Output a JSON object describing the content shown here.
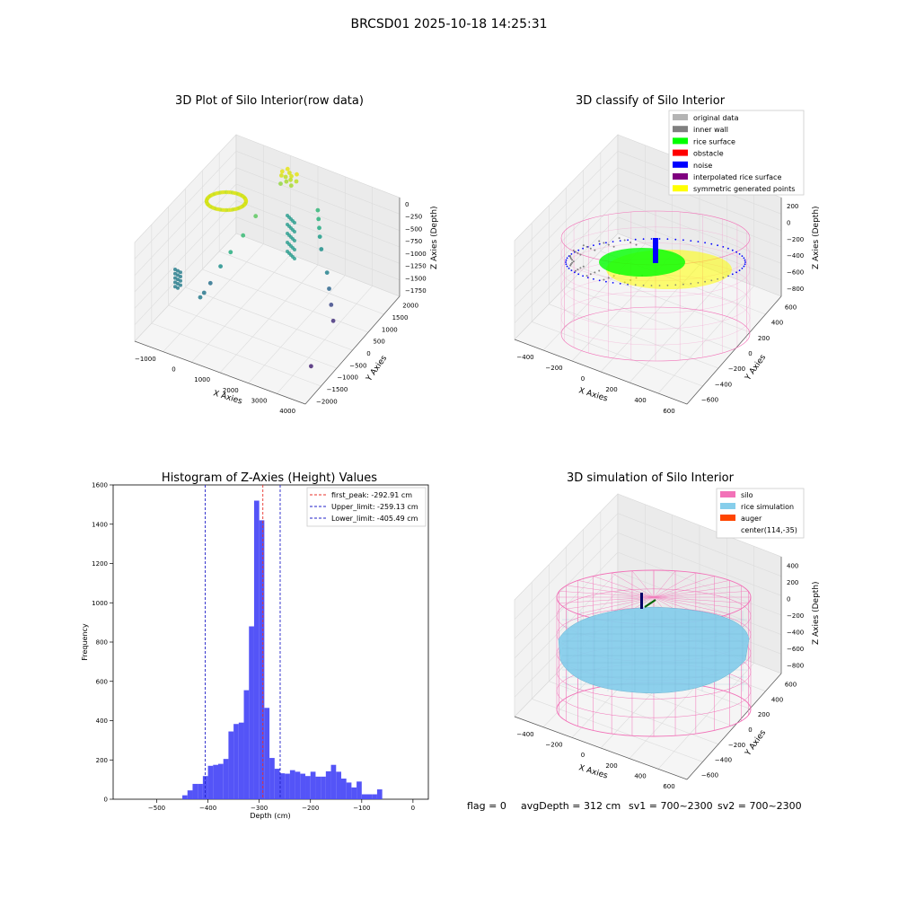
{
  "figure_title": "BRCSD01 2025-10-18 14:25:31",
  "footer": {
    "flag": "flag = 0",
    "avg_depth": "avgDepth = 312 cm",
    "sv1": "sv1 = 700~2300",
    "sv2": "sv2 = 700~2300"
  },
  "colors": {
    "hist_bar": "#4b4bf7",
    "first_peak": "#e8302a",
    "limit": "#2020c8",
    "silo": "#f272b8",
    "rice": "#87ceeb",
    "auger": "#ff4500",
    "original": "#b4b4b4",
    "inner_wall": "#808080",
    "rice_surface": "#00ff00",
    "obstacle": "#ff0000",
    "noise": "#0000ff",
    "interpolated": "#800080",
    "symmetric": "#ffff00"
  },
  "chart_data": [
    {
      "type": "scatter",
      "title": "3D Plot of Silo Interior(row data)",
      "xlabel": "X Axies",
      "ylabel": "Y Axies",
      "zlabel": "Z Axies (Depth)",
      "x_ticks": [
        "−1000",
        "0",
        "1000",
        "2000",
        "3000",
        "4000"
      ],
      "y_ticks": [
        "2000",
        "1500",
        "1000",
        "500",
        "0",
        "−500",
        "−1000",
        "−1500",
        "−2000"
      ],
      "z_ticks": [
        "0",
        "−250",
        "−500",
        "−750",
        "−1000",
        "−1250",
        "−1500",
        "−1750"
      ],
      "xlim": [
        -1300,
        4300
      ],
      "ylim": [
        -2000,
        2300
      ],
      "zlim": [
        -1900,
        0
      ],
      "points": [
        {
          "x": 600,
          "y": 1800,
          "z": -400,
          "c": "#e5e419"
        },
        {
          "x": 650,
          "y": 1700,
          "z": -420,
          "c": "#d8e219"
        },
        {
          "x": 700,
          "y": 1900,
          "z": -380,
          "c": "#e5e419"
        },
        {
          "x": 750,
          "y": 1750,
          "z": -450,
          "c": "#bddf26"
        },
        {
          "x": 800,
          "y": 1850,
          "z": -410,
          "c": "#d8e219"
        },
        {
          "x": 850,
          "y": 1650,
          "z": -470,
          "c": "#a8db34"
        },
        {
          "x": 900,
          "y": 1800,
          "z": -430,
          "c": "#d8e219"
        },
        {
          "x": 950,
          "y": 1700,
          "z": -440,
          "c": "#bddf26"
        },
        {
          "x": 1000,
          "y": 1900,
          "z": -420,
          "c": "#e5e419"
        },
        {
          "x": 1050,
          "y": 1600,
          "z": -480,
          "c": "#a8db34"
        },
        {
          "x": 700,
          "y": 1600,
          "z": -520,
          "c": "#93d741"
        },
        {
          "x": 1100,
          "y": 1750,
          "z": -460,
          "c": "#bddf26"
        },
        {
          "x": 500,
          "y": 800,
          "z": -800,
          "c": "#5ec962"
        },
        {
          "x": 400,
          "y": 400,
          "z": -1000,
          "c": "#3bbb75"
        },
        {
          "x": 300,
          "y": 0,
          "z": -1150,
          "c": "#28ae80"
        },
        {
          "x": 200,
          "y": -300,
          "z": -1300,
          "c": "#21918c"
        },
        {
          "x": 100,
          "y": -600,
          "z": -1500,
          "c": "#2c728e"
        },
        {
          "x": 50,
          "y": -800,
          "z": -1600,
          "c": "#2a788e"
        },
        {
          "x": 0,
          "y": -900,
          "z": -1650,
          "c": "#287c8e"
        },
        {
          "x": 2000,
          "y": 1500,
          "z": -700,
          "c": "#35b779"
        },
        {
          "x": 2100,
          "y": 1400,
          "z": -800,
          "c": "#2db27d"
        },
        {
          "x": 2200,
          "y": 1300,
          "z": -900,
          "c": "#25ab82"
        },
        {
          "x": 2300,
          "y": 1200,
          "z": -1000,
          "c": "#1f9e89"
        },
        {
          "x": 2500,
          "y": 1000,
          "z": -1100,
          "c": "#21918c"
        },
        {
          "x": 3000,
          "y": 600,
          "z": -1250,
          "c": "#26828e"
        },
        {
          "x": 3300,
          "y": 300,
          "z": -1350,
          "c": "#31688e"
        },
        {
          "x": 3600,
          "y": 0,
          "z": -1450,
          "c": "#3e4a89"
        },
        {
          "x": 3900,
          "y": -300,
          "z": -1550,
          "c": "#46327e"
        },
        {
          "x": 4100,
          "y": -1500,
          "z": -1800,
          "c": "#482475"
        }
      ]
    },
    {
      "type": "scatter",
      "title": "3D classify of Silo Interior",
      "xlabel": "X Axies",
      "ylabel": "Y Axies",
      "zlabel": "Z Axies (Depth)",
      "x_ticks": [
        "−400",
        "−200",
        "0",
        "200",
        "400",
        "600"
      ],
      "y_ticks": [
        "600",
        "400",
        "200",
        "0",
        "−200",
        "−400",
        "−600"
      ],
      "z_ticks": [
        "200",
        "0",
        "−200",
        "−400",
        "−600",
        "−800"
      ],
      "legend": [
        "original data",
        "inner wall",
        "rice surface",
        "obstacle",
        "noise",
        "interpolated rice surface",
        "symmetric generated points"
      ],
      "legend_placement": "top-right"
    },
    {
      "type": "bar",
      "title": "Histogram of Z-Axies (Height) Values",
      "xlabel": "Depth (cm)",
      "ylabel": "Frequency",
      "xlim": [
        -585,
        30
      ],
      "ylim": [
        0,
        1600
      ],
      "x_ticks": [
        -500,
        -400,
        -300,
        -200,
        -100,
        0
      ],
      "x_tick_labels": [
        "−500",
        "−400",
        "−300",
        "−200",
        "−100",
        "0"
      ],
      "y_ticks": [
        0,
        200,
        400,
        600,
        800,
        1000,
        1200,
        1400,
        1600
      ],
      "bin_start": -450,
      "bin_width": 10,
      "values": [
        20,
        45,
        78,
        78,
        118,
        170,
        175,
        180,
        205,
        345,
        383,
        390,
        555,
        880,
        1520,
        1420,
        465,
        210,
        155,
        132,
        130,
        148,
        140,
        130,
        118,
        140,
        115,
        115,
        142,
        175,
        140,
        105,
        85,
        60,
        90,
        25,
        25,
        25,
        50
      ],
      "vlines": [
        {
          "name": "first_peak",
          "x": -292.91,
          "label": "first_peak: -292.91 cm",
          "color": "#e8302a"
        },
        {
          "name": "upper_limit",
          "x": -259.13,
          "label": "Upper_limit: -259.13 cm",
          "color": "#2020c8"
        },
        {
          "name": "lower_limit",
          "x": -405.49,
          "label": "Lower_limit: -405.49 cm",
          "color": "#2020c8"
        }
      ],
      "legend_placement": "top-right"
    },
    {
      "type": "area",
      "title": "3D simulation of Silo Interior",
      "xlabel": "X Axies",
      "ylabel": "Y Axies",
      "zlabel": "Z Axies (Depth)",
      "x_ticks": [
        "−400",
        "−200",
        "0",
        "200",
        "400",
        "600"
      ],
      "y_ticks": [
        "600",
        "400",
        "200",
        "0",
        "−200",
        "−400",
        "−600"
      ],
      "z_ticks": [
        "400",
        "200",
        "0",
        "−200",
        "−400",
        "−600",
        "−800"
      ],
      "legend": [
        "silo",
        "rice simulation",
        "auger",
        "center(114,-35)"
      ],
      "legend_placement": "top-right"
    }
  ]
}
